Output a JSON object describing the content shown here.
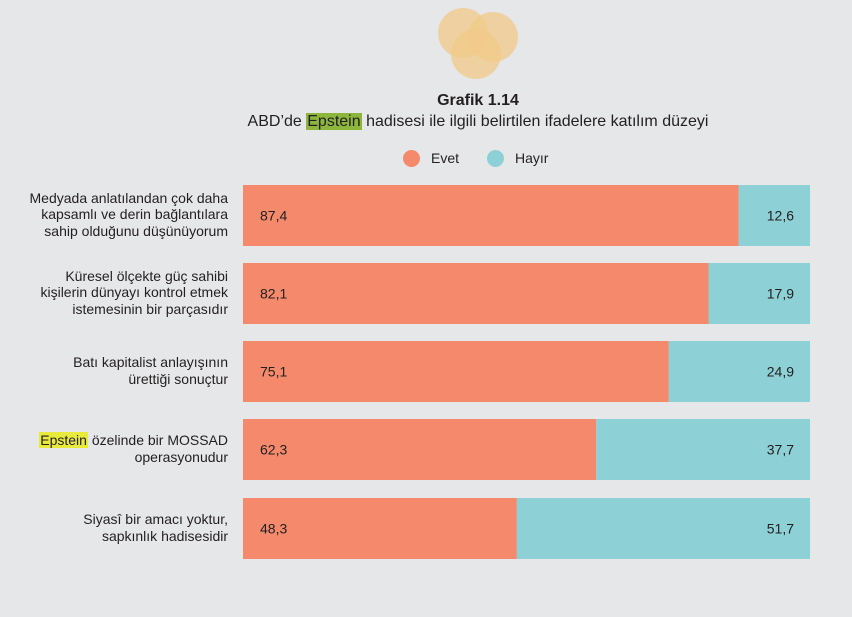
{
  "chart_data": {
    "type": "bar",
    "stacked": true,
    "orientation": "horizontal",
    "title": "Grafik 1.14",
    "subtitle_parts": [
      "ABD’de ",
      "Epstein",
      " hadisesi ile ilgili belirtilen ifadelere katılım düzeyi"
    ],
    "categories": [
      [
        "Medyada anlatılandan çok daha",
        "kapsamlı ve derin bağlantılara",
        "sahip olduğunu düşünüyorum"
      ],
      [
        "Küresel ölçekte güç sahibi",
        "kişilerin dünyayı kontrol etmek",
        "istemesinin bir parçasıdır"
      ],
      [
        "Batı kapitalist anlayışının",
        "ürettiği sonuçtur"
      ],
      [
        "Epstein özelinde bir MOSSAD",
        "operasyonudur"
      ],
      [
        "Siyasî bir amacı yoktur,",
        "sapkınlık hadisesidir"
      ]
    ],
    "highlight_word": "Epstein",
    "series": [
      {
        "name": "Evet",
        "color": "#f4896b",
        "values": [
          87.4,
          82.1,
          75.1,
          62.3,
          48.3
        ],
        "labels": [
          "87,4",
          "82,1",
          "75,1",
          "62,3",
          "48,3"
        ]
      },
      {
        "name": "Hayır",
        "color": "#8dd1d6",
        "values": [
          12.6,
          17.9,
          24.9,
          37.7,
          51.7
        ],
        "labels": [
          "12,6",
          "17,9",
          "24,9",
          "37,7",
          "51,7"
        ]
      }
    ],
    "xlim": [
      0,
      100
    ],
    "grid": false,
    "legend_position": "top"
  },
  "colors": {
    "background": "#e6e7e8",
    "highlight_green": "#8db63c",
    "highlight_yellow": "#e8ea3c",
    "logo": "#f2c98a"
  },
  "logo_icon": "three-overlapping-circles-icon"
}
